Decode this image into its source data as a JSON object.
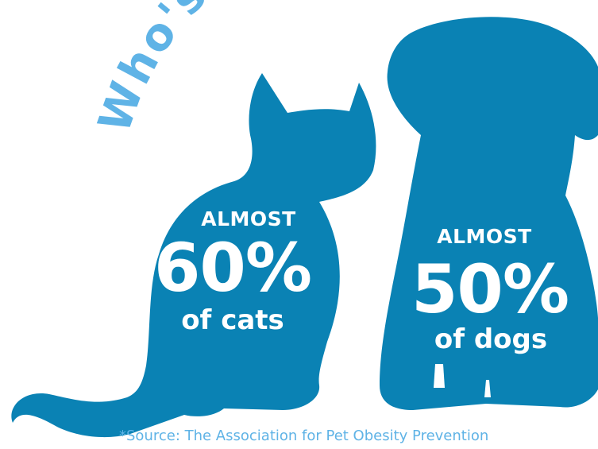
{
  "heading": {
    "text": "Who's Overweight?",
    "color": "#5fb3e6"
  },
  "colors": {
    "silhouette": "#0a82b4",
    "stat_text": "#ffffff",
    "source_text": "#5fb3e6"
  },
  "cat_stat": {
    "qualifier": "ALMOST",
    "percent": "60%",
    "label": "of cats",
    "icon": "cat-silhouette-icon"
  },
  "dog_stat": {
    "qualifier": "ALMOST",
    "percent": "50%",
    "label": "of dogs",
    "icon": "dog-silhouette-icon"
  },
  "source": "*Source: The Association for Pet Obesity Prevention"
}
